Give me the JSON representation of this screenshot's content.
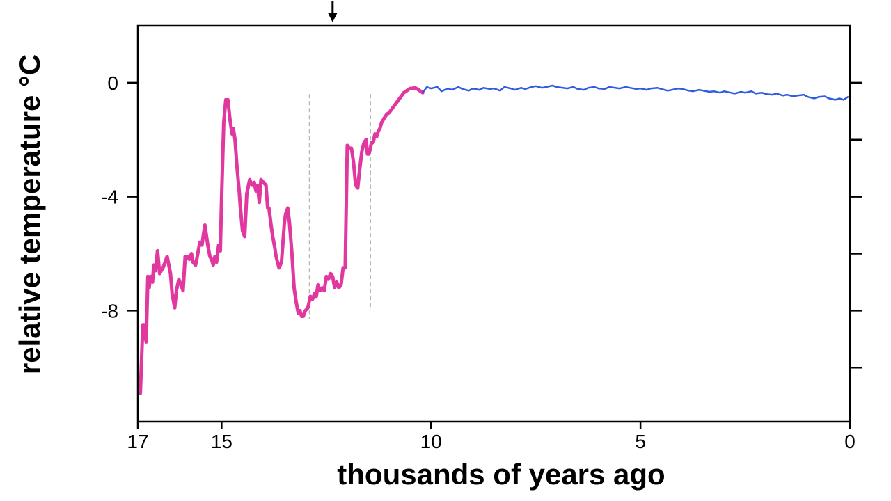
{
  "chart_data": {
    "type": "line",
    "title": "",
    "xlabel": "thousands of years ago",
    "ylabel": "relative temperature °C",
    "xlim": [
      17,
      0
    ],
    "ylim": [
      -11.9,
      2
    ],
    "x_ticks": [
      {
        "value": 17,
        "label": "17"
      },
      {
        "value": 15,
        "label": "15"
      },
      {
        "value": 10,
        "label": "10"
      },
      {
        "value": 5,
        "label": "5"
      },
      {
        "value": 0,
        "label": "0"
      }
    ],
    "y_ticks_labeled": [
      {
        "value": 0,
        "label": "0"
      },
      {
        "value": -4,
        "label": "-4"
      },
      {
        "value": -8,
        "label": "-8"
      }
    ],
    "y_ticks_right": [
      0,
      -2,
      -4,
      -6,
      -8,
      -10
    ],
    "grid": false,
    "legend": "none",
    "marker_arrow_x": 12.35,
    "vertical_markers": [
      {
        "x": 12.9,
        "y_top": -0.4,
        "y_bottom": -8.3
      },
      {
        "x": 11.45,
        "y_top": -0.4,
        "y_bottom": -8.0
      }
    ],
    "series": [
      {
        "color": "#e0389f",
        "x": [
          16.94,
          16.88,
          16.85,
          16.8,
          16.76,
          16.73,
          16.7,
          16.65,
          16.62,
          16.58,
          16.53,
          16.48,
          16.4,
          16.35,
          16.3,
          16.22,
          16.18,
          16.12,
          16.08,
          16.02,
          15.97,
          15.92,
          15.87,
          15.82,
          15.77,
          15.72,
          15.68,
          15.62,
          15.57,
          15.52,
          15.47,
          15.4,
          15.33,
          15.28,
          15.24,
          15.2,
          15.16,
          15.12,
          15.07,
          15.03,
          15.0,
          14.95,
          14.9,
          14.85,
          14.8,
          14.75,
          14.72,
          14.68,
          14.63,
          14.58,
          14.55,
          14.5,
          14.45,
          14.4,
          14.33,
          14.27,
          14.22,
          14.18,
          14.14,
          14.1,
          14.06,
          14.0,
          13.94,
          13.9,
          13.87,
          13.82,
          13.78,
          13.73,
          13.7,
          13.63,
          13.57,
          13.5,
          13.47,
          13.42,
          13.38,
          13.32,
          13.27,
          13.22,
          13.17,
          13.13,
          13.09,
          13.05,
          13.0,
          12.94,
          12.88,
          12.83,
          12.78,
          12.74,
          12.7,
          12.65,
          12.6,
          12.55,
          12.5,
          12.45,
          12.4,
          12.35,
          12.3,
          12.25,
          12.2,
          12.15,
          12.1,
          12.05,
          12.0,
          11.95,
          11.9,
          11.85,
          11.8,
          11.75,
          11.7,
          11.65,
          11.6,
          11.55,
          11.52,
          11.48,
          11.45,
          11.42,
          11.38,
          11.34,
          11.3,
          11.26,
          11.22,
          11.18,
          11.14,
          11.1,
          11.05,
          11.0,
          10.95,
          10.9,
          10.85,
          10.8,
          10.75,
          10.7,
          10.65,
          10.6,
          10.55,
          10.5,
          10.45,
          10.4,
          10.35,
          10.3,
          10.25,
          10.2
        ],
        "y": [
          -10.9,
          -8.5,
          -8.5,
          -9.1,
          -6.8,
          -7.2,
          -6.8,
          -7.0,
          -6.4,
          -6.6,
          -5.9,
          -6.7,
          -6.5,
          -6.3,
          -6.1,
          -6.7,
          -7.4,
          -7.9,
          -7.3,
          -6.9,
          -7.1,
          -7.3,
          -6.1,
          -6.1,
          -6.2,
          -6.0,
          -6.3,
          -6.4,
          -6.0,
          -5.6,
          -5.7,
          -5.0,
          -5.7,
          -6.1,
          -6.2,
          -6.4,
          -6.1,
          -6.3,
          -5.7,
          -5.9,
          -4.0,
          -1.4,
          -0.6,
          -0.6,
          -1.3,
          -1.8,
          -1.6,
          -2.0,
          -3.0,
          -3.8,
          -4.4,
          -5.2,
          -5.4,
          -3.9,
          -3.4,
          -3.6,
          -3.5,
          -3.8,
          -3.6,
          -4.2,
          -3.4,
          -3.5,
          -3.6,
          -4.4,
          -4.4,
          -5.0,
          -5.4,
          -5.8,
          -6.1,
          -6.5,
          -6.3,
          -4.9,
          -4.6,
          -4.4,
          -4.9,
          -6.0,
          -7.2,
          -7.7,
          -8.1,
          -8.0,
          -8.2,
          -8.2,
          -8.0,
          -7.9,
          -7.5,
          -7.6,
          -7.4,
          -7.5,
          -7.1,
          -7.3,
          -7.2,
          -7.3,
          -6.8,
          -6.9,
          -6.7,
          -6.8,
          -7.2,
          -7.0,
          -7.2,
          -7.1,
          -6.5,
          -6.5,
          -2.2,
          -2.3,
          -2.3,
          -2.8,
          -3.6,
          -3.7,
          -3.0,
          -2.4,
          -2.1,
          -2.0,
          -2.5,
          -2.5,
          -2.3,
          -2.1,
          -2.1,
          -1.8,
          -1.9,
          -1.7,
          -1.6,
          -1.4,
          -1.3,
          -1.2,
          -1.1,
          -1.05,
          -0.95,
          -0.85,
          -0.75,
          -0.65,
          -0.55,
          -0.45,
          -0.35,
          -0.3,
          -0.25,
          -0.2,
          -0.2,
          -0.18,
          -0.2,
          -0.25,
          -0.3,
          -0.35
        ]
      },
      {
        "color": "#2f5ce0",
        "x": [
          10.2,
          10.1,
          10.0,
          9.85,
          9.75,
          9.6,
          9.5,
          9.35,
          9.25,
          9.1,
          9.0,
          8.85,
          8.75,
          8.6,
          8.5,
          8.35,
          8.25,
          8.1,
          8.0,
          7.85,
          7.75,
          7.6,
          7.5,
          7.35,
          7.25,
          7.1,
          7.0,
          6.85,
          6.75,
          6.6,
          6.5,
          6.35,
          6.25,
          6.1,
          6.0,
          5.85,
          5.75,
          5.6,
          5.5,
          5.35,
          5.25,
          5.1,
          5.0,
          4.85,
          4.75,
          4.6,
          4.5,
          4.35,
          4.25,
          4.1,
          4.0,
          3.85,
          3.75,
          3.6,
          3.5,
          3.35,
          3.25,
          3.1,
          3.0,
          2.85,
          2.75,
          2.6,
          2.5,
          2.35,
          2.25,
          2.1,
          2.0,
          1.85,
          1.75,
          1.6,
          1.5,
          1.35,
          1.25,
          1.1,
          1.0,
          0.85,
          0.75,
          0.6,
          0.5,
          0.35,
          0.25,
          0.15,
          0.05
        ],
        "y": [
          -0.35,
          -0.15,
          -0.2,
          -0.15,
          -0.3,
          -0.2,
          -0.25,
          -0.15,
          -0.22,
          -0.28,
          -0.2,
          -0.25,
          -0.18,
          -0.22,
          -0.2,
          -0.28,
          -0.15,
          -0.2,
          -0.25,
          -0.18,
          -0.22,
          -0.15,
          -0.12,
          -0.18,
          -0.15,
          -0.1,
          -0.15,
          -0.18,
          -0.2,
          -0.15,
          -0.22,
          -0.25,
          -0.18,
          -0.15,
          -0.2,
          -0.22,
          -0.15,
          -0.18,
          -0.2,
          -0.15,
          -0.18,
          -0.22,
          -0.2,
          -0.25,
          -0.2,
          -0.18,
          -0.22,
          -0.28,
          -0.25,
          -0.2,
          -0.22,
          -0.28,
          -0.3,
          -0.25,
          -0.28,
          -0.32,
          -0.3,
          -0.35,
          -0.3,
          -0.35,
          -0.38,
          -0.32,
          -0.35,
          -0.3,
          -0.38,
          -0.35,
          -0.4,
          -0.42,
          -0.38,
          -0.45,
          -0.42,
          -0.48,
          -0.45,
          -0.42,
          -0.5,
          -0.55,
          -0.5,
          -0.48,
          -0.55,
          -0.6,
          -0.55,
          -0.6,
          -0.5
        ]
      }
    ]
  }
}
